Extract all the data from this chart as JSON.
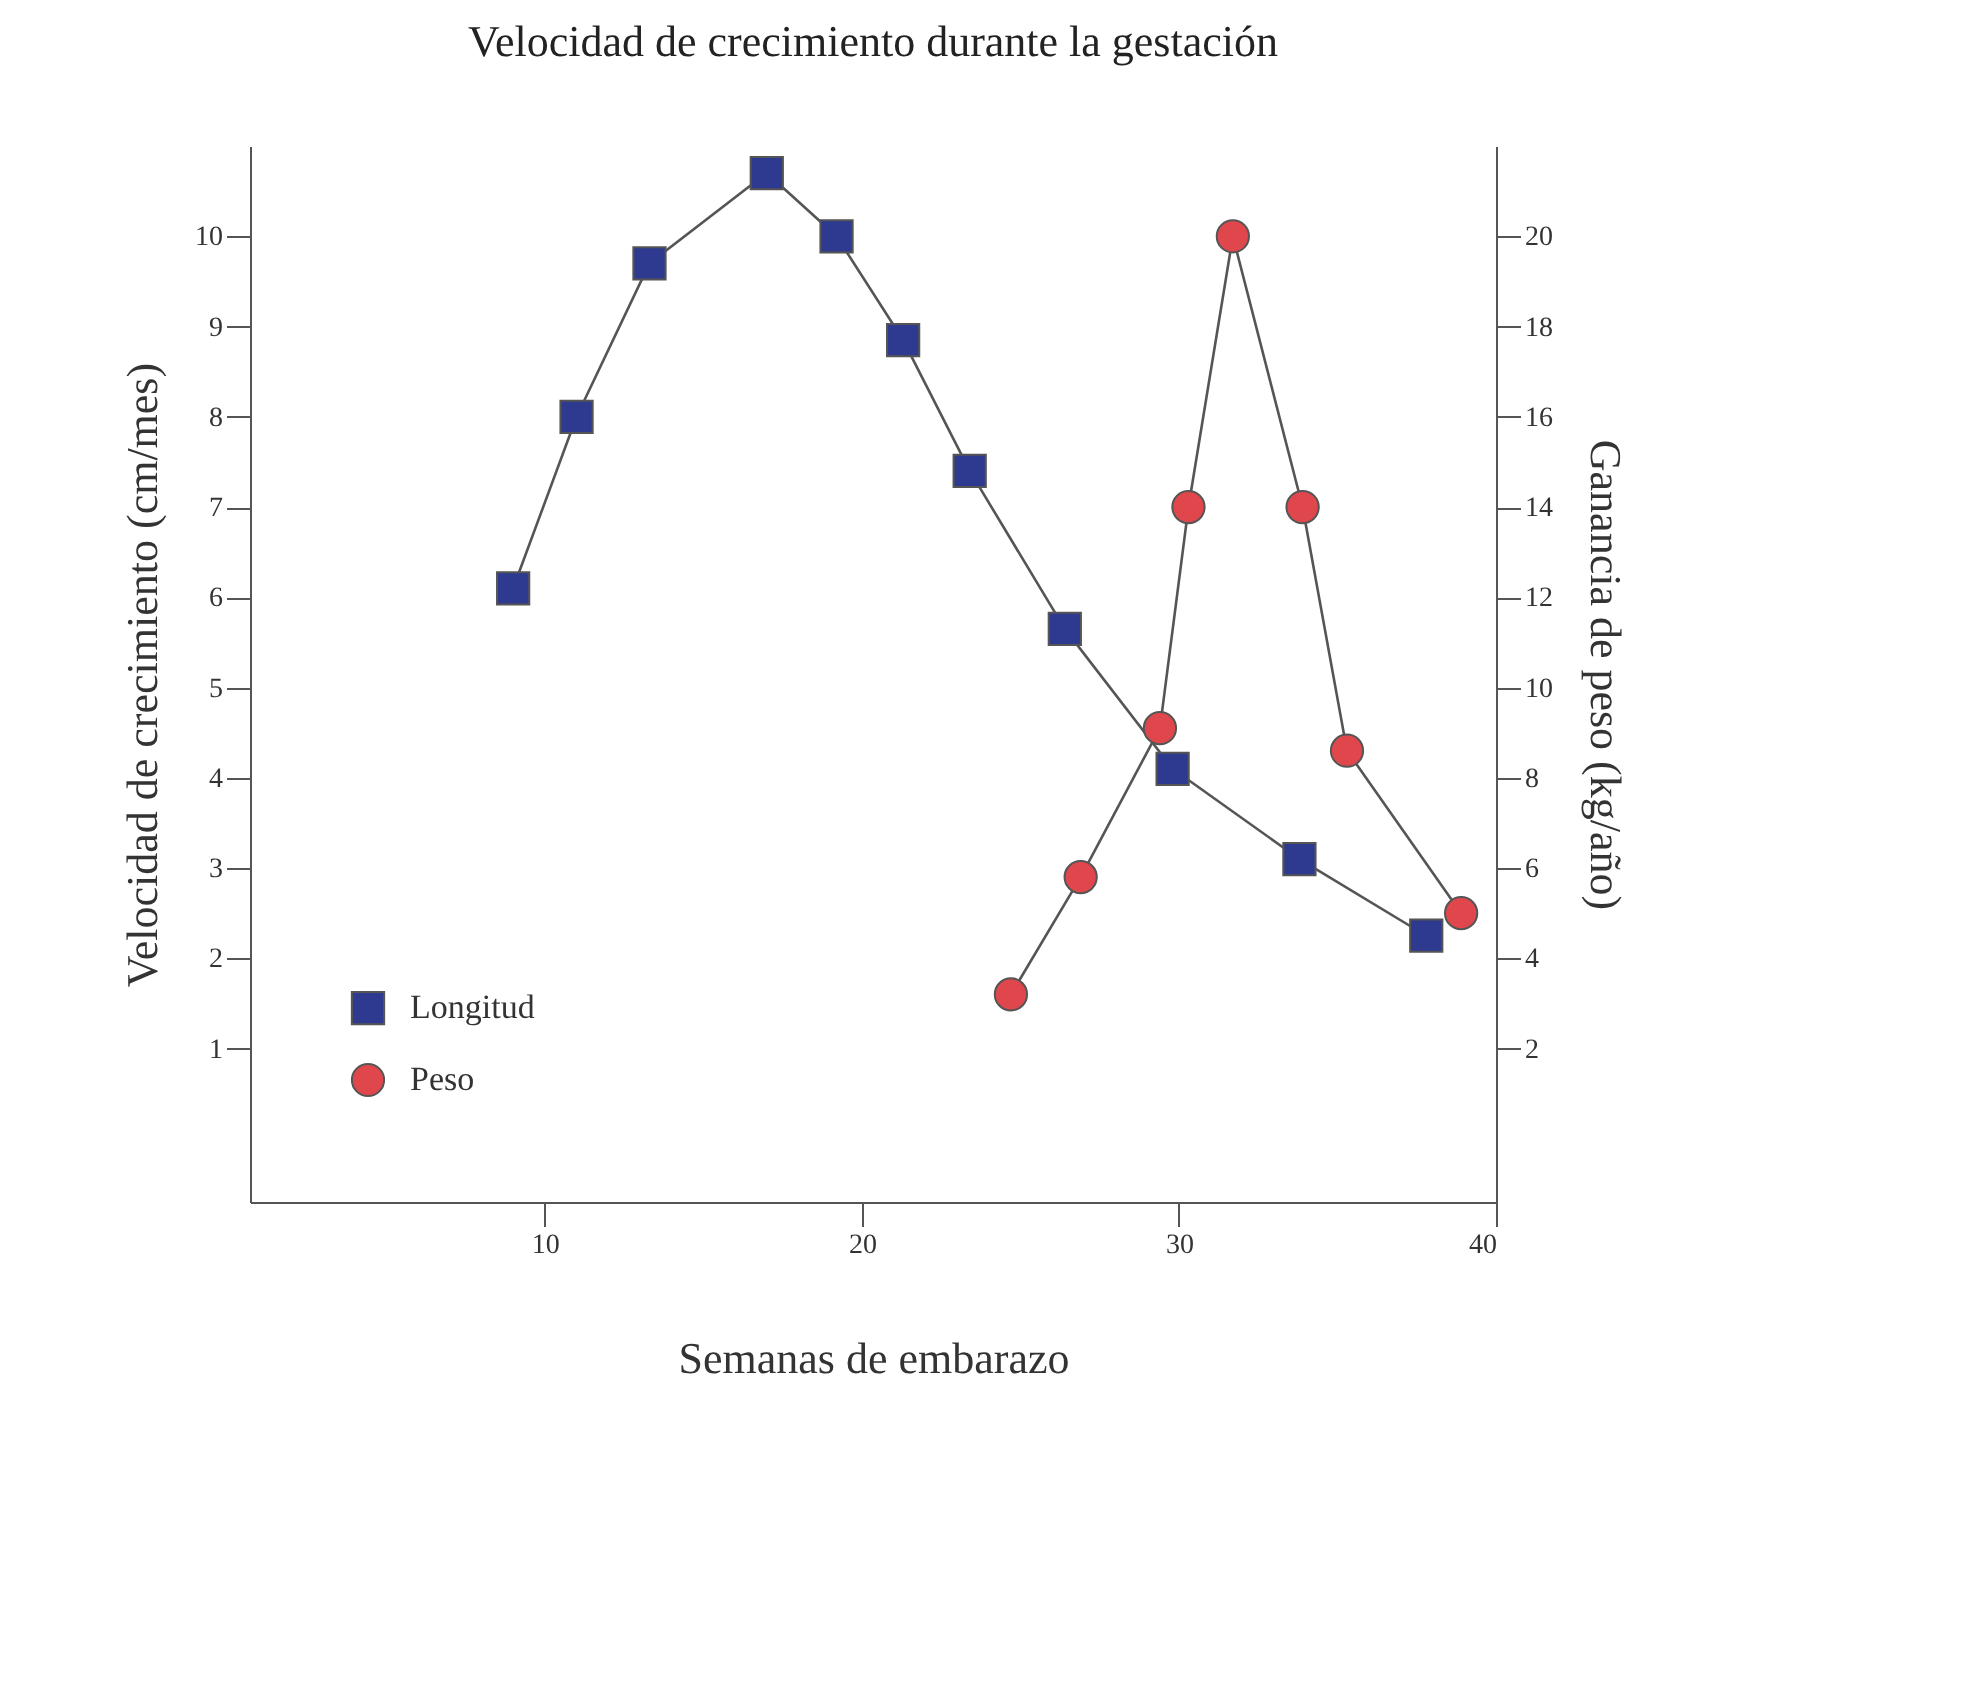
{
  "chart_data": {
    "type": "line",
    "title": "Velocidad de crecimiento durante la gestación",
    "xlabel": "Semanas de embarazo",
    "ylabel": "Velocidad de crecimiento (cm/mes)",
    "y2label": "Ganancia de peso (kg/año)",
    "xlim": [
      0.7,
      40
    ],
    "xticks": [
      10,
      20,
      30,
      40
    ],
    "ylim": [
      -0.7,
      11
    ],
    "yticks": [
      1,
      2,
      3,
      4,
      5,
      6,
      7,
      8,
      9,
      10
    ],
    "y2lim": [
      -1.4,
      22
    ],
    "y2ticks": [
      2,
      4,
      6,
      8,
      10,
      12,
      14,
      16,
      18,
      20
    ],
    "grid": false,
    "legend": "bottom left",
    "series": [
      {
        "name": "Longitud",
        "color": "#2e3a8f",
        "marker": "square",
        "x": [
          9,
          11,
          13.3,
          17,
          19.2,
          21.3,
          23.4,
          26.4,
          29.8,
          33.8,
          37.8
        ],
        "values": [
          6.1,
          8.0,
          9.7,
          10.7,
          10.0,
          8.85,
          7.4,
          5.65,
          4.1,
          3.1,
          2.25
        ]
      },
      {
        "name": "Peso",
        "color": "#e0474c",
        "marker": "circle",
        "axis": "y2",
        "x": [
          24.7,
          26.9,
          29.4,
          30.3,
          31.7,
          33.9,
          35.3,
          38.9
        ],
        "values": [
          3.2,
          5.8,
          9.1,
          14,
          20,
          14,
          8.6,
          5.0
        ]
      }
    ]
  }
}
